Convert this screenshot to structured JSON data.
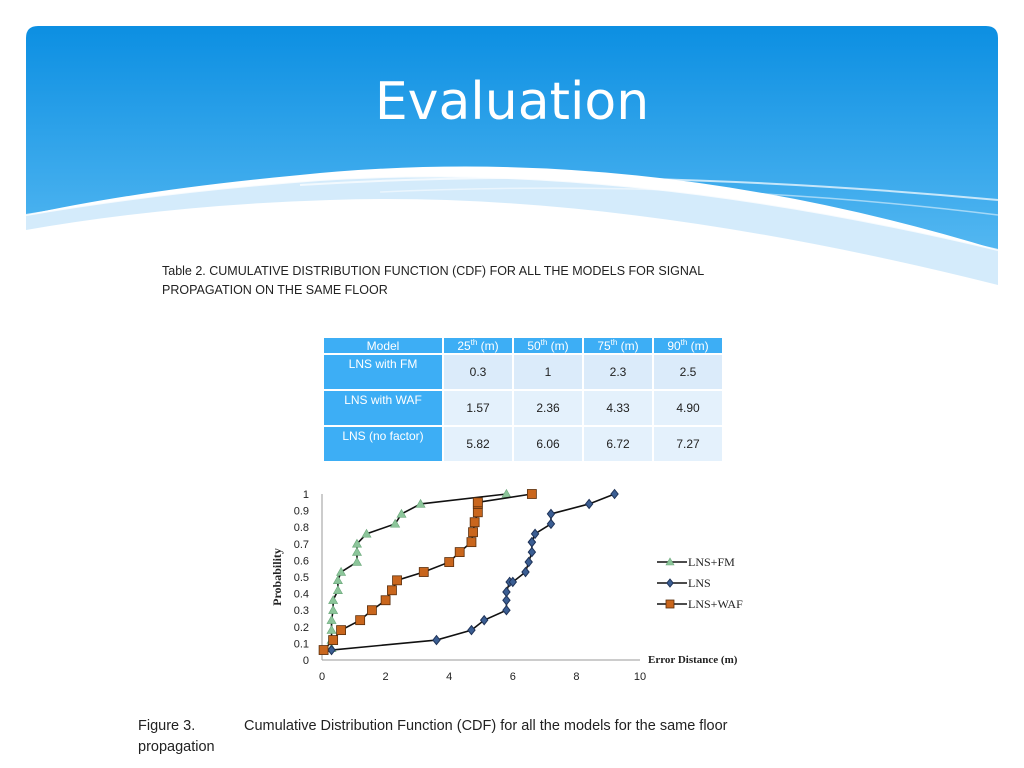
{
  "slide": {
    "title": "Evaluation"
  },
  "table": {
    "caption_line1": "Table 2. CUMULATIVE DISTRIBUTION FUNCTION (CDF)  FOR ALL THE MODELS FOR SIGNAL",
    "caption_line2": "PROPAGATION ON THE SAME FLOOR",
    "headers": [
      {
        "base": "Model",
        "sup": "",
        "rest": ""
      },
      {
        "base": "25",
        "sup": "th",
        "rest": " (m)"
      },
      {
        "base": "50",
        "sup": "th",
        "rest": " (m)"
      },
      {
        "base": "75",
        "sup": "th",
        "rest": " (m)"
      },
      {
        "base": "90",
        "sup": "th",
        "rest": " (m)"
      }
    ],
    "rows": [
      {
        "model": "LNS with FM",
        "values": [
          "0.3",
          "1",
          "2.3",
          "2.5"
        ]
      },
      {
        "model": "LNS with WAF",
        "values": [
          "1.57",
          "2.36",
          "4.33",
          "4.90"
        ]
      },
      {
        "model": "LNS (no factor)",
        "values": [
          "5.82",
          "6.06",
          "6.72",
          "7.27"
        ]
      }
    ]
  },
  "chart_data": {
    "type": "line",
    "title": "",
    "xlabel": "Error Distance (m)",
    "ylabel": "Probability",
    "xlim": [
      0,
      10
    ],
    "ylim": [
      0,
      1
    ],
    "xticks": [
      "0",
      "2",
      "4",
      "6",
      "8",
      "10"
    ],
    "yticks": [
      "0",
      "0.1",
      "0.2",
      "0.3",
      "0.4",
      "0.5",
      "0.6",
      "0.7",
      "0.8",
      "0.9",
      "1"
    ],
    "grid": false,
    "legend_position": "right",
    "series": [
      {
        "name": "LNS+FM",
        "color": "#8cc59a",
        "marker": "triangle",
        "x": [
          0.3,
          0.3,
          0.3,
          0.3,
          0.35,
          0.35,
          0.5,
          0.5,
          0.6,
          1.1,
          1.1,
          1.1,
          1.4,
          2.3,
          2.5,
          3.1,
          5.8
        ],
        "y": [
          0.07,
          0.12,
          0.18,
          0.24,
          0.3,
          0.36,
          0.42,
          0.48,
          0.53,
          0.59,
          0.65,
          0.7,
          0.76,
          0.82,
          0.88,
          0.94,
          1.0
        ]
      },
      {
        "name": "LNS",
        "color": "#2e4a7a",
        "marker": "diamond",
        "x": [
          0.3,
          3.6,
          4.7,
          5.1,
          5.8,
          5.8,
          5.8,
          5.9,
          6.0,
          6.4,
          6.5,
          6.6,
          6.6,
          6.6,
          6.7,
          7.2,
          7.2,
          8.4,
          9.2
        ],
        "y": [
          0.06,
          0.12,
          0.18,
          0.24,
          0.3,
          0.36,
          0.41,
          0.47,
          0.47,
          0.53,
          0.59,
          0.65,
          0.71,
          0.71,
          0.76,
          0.82,
          0.88,
          0.94,
          1.0
        ]
      },
      {
        "name": "LNS+WAF",
        "color": "#c9661d",
        "marker": "square",
        "x": [
          0.05,
          0.35,
          0.6,
          1.2,
          1.57,
          2.0,
          2.2,
          2.36,
          3.2,
          4.0,
          4.33,
          4.7,
          4.75,
          4.8,
          4.9,
          4.9,
          4.9,
          6.6
        ],
        "y": [
          0.06,
          0.12,
          0.18,
          0.24,
          0.3,
          0.36,
          0.42,
          0.48,
          0.53,
          0.59,
          0.65,
          0.71,
          0.77,
          0.83,
          0.89,
          0.94,
          0.95,
          1.0
        ]
      }
    ]
  },
  "figure": {
    "caption_label": "Figure 3.",
    "caption_text": "Cumulative Distribution Function (CDF) for all the models for the same floor",
    "caption_line2": "propagation"
  }
}
